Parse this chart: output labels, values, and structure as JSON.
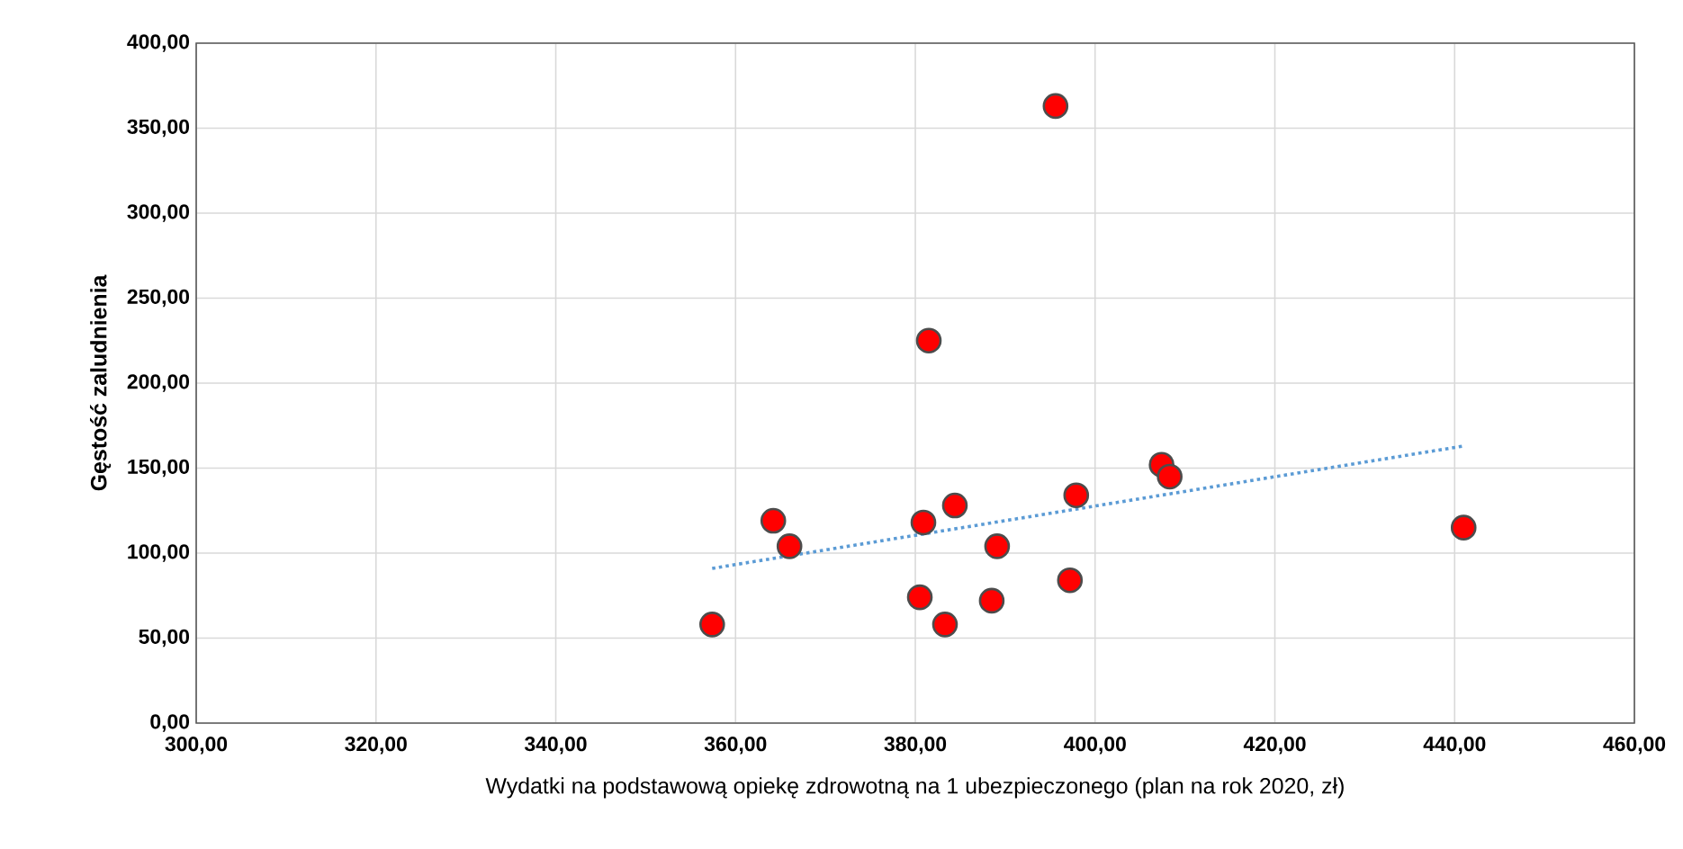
{
  "chart_data": {
    "type": "scatter",
    "xlabel": "Wydatki na podstawową opiekę zdrowotną na 1 ubezpieczonego (plan na rok 2020, zł)",
    "ylabel": "Gęstość zaludnienia",
    "xlim": [
      300,
      460
    ],
    "ylim": [
      0,
      400
    ],
    "xticks": [
      {
        "value": 300,
        "label": "300,00"
      },
      {
        "value": 320,
        "label": "320,00"
      },
      {
        "value": 340,
        "label": "340,00"
      },
      {
        "value": 360,
        "label": "360,00"
      },
      {
        "value": 380,
        "label": "380,00"
      },
      {
        "value": 400,
        "label": "400,00"
      },
      {
        "value": 420,
        "label": "420,00"
      },
      {
        "value": 440,
        "label": "440,00"
      },
      {
        "value": 460,
        "label": "460,00"
      }
    ],
    "yticks": [
      {
        "value": 0,
        "label": "0,00"
      },
      {
        "value": 50,
        "label": "50,00"
      },
      {
        "value": 100,
        "label": "100,00"
      },
      {
        "value": 150,
        "label": "150,00"
      },
      {
        "value": 200,
        "label": "200,00"
      },
      {
        "value": 250,
        "label": "250,00"
      },
      {
        "value": 300,
        "label": "300,00"
      },
      {
        "value": 350,
        "label": "350,00"
      },
      {
        "value": 400,
        "label": "400,00"
      }
    ],
    "grid": true,
    "legend": false,
    "series": [
      {
        "marker": "circle",
        "color": "#ff0000",
        "x": [
          357.4,
          364.2,
          366.0,
          395.6,
          381.5,
          380.9,
          384.4,
          389.1,
          380.5,
          383.3,
          388.5,
          397.2,
          397.9,
          407.4,
          408.3,
          441.0
        ],
        "values": [
          58,
          119,
          104,
          363,
          225,
          118,
          128,
          104,
          74,
          58,
          72,
          84,
          134,
          152,
          145,
          115
        ]
      },
      {
        "type": "line",
        "marker": "none",
        "line_style": "dotted",
        "color": "#5b9bd5",
        "x": [
          357.4,
          441.0
        ],
        "values": [
          91,
          163
        ]
      }
    ]
  }
}
